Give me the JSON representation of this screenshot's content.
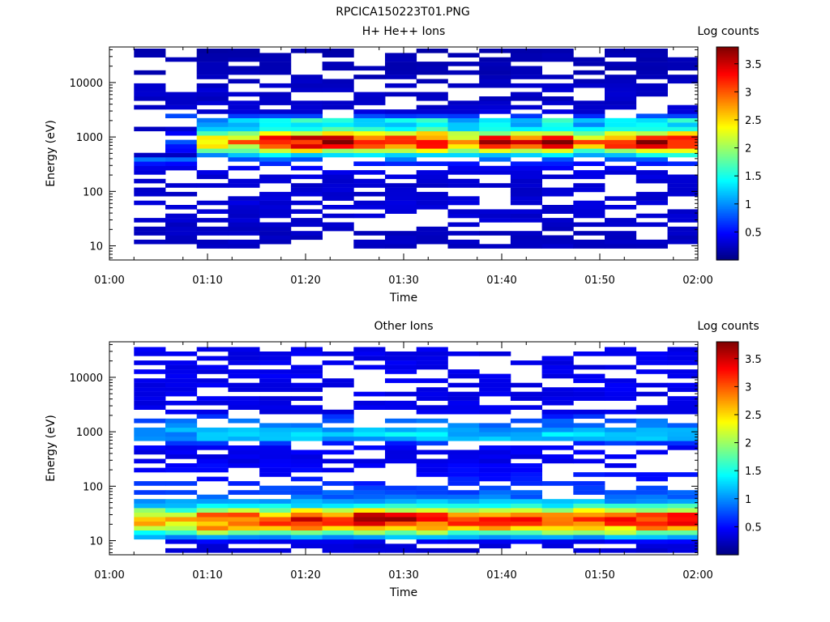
{
  "figure_title": "RPCICA150223T01.PNG",
  "colorscale": [
    "#00007f",
    "#0000ff",
    "#0080ff",
    "#00ffff",
    "#80ff80",
    "#ffff00",
    "#ff8000",
    "#ff0000",
    "#7f0000"
  ],
  "chart_data": [
    {
      "type": "heatmap",
      "title": "H+ He++ Ions",
      "xlabel": "Time",
      "ylabel": "Energy (eV)",
      "colorbar_title": "Log counts",
      "y_scale": "log",
      "ylim": [
        5.5,
        45000
      ],
      "zlim": [
        0,
        3.8
      ],
      "x_ticks": [
        "01:00",
        "01:10",
        "01:20",
        "01:30",
        "01:40",
        "01:50",
        "02:00"
      ],
      "y_ticks": [
        "10",
        "100",
        "1000",
        "10000"
      ],
      "colorbar_ticks": [
        "0.5",
        "1",
        "1.5",
        "2",
        "2.5",
        "3",
        "3.5"
      ],
      "x_range_minutes": [
        0,
        60
      ],
      "time_bins_minutes": [
        2.5,
        5.7,
        8.9,
        12.1,
        15.3,
        18.5,
        21.7,
        24.9,
        28.1,
        31.3,
        34.5,
        37.7,
        40.9,
        44.1,
        47.3,
        50.5,
        53.7,
        56.9,
        60.0
      ],
      "profile_energy": [
        20,
        30,
        45,
        60,
        80,
        100,
        150,
        200,
        300,
        400,
        500,
        600,
        700,
        800,
        900,
        1100,
        1300,
        1600,
        2000,
        2500,
        3000,
        4000,
        5000,
        7000,
        10000,
        15000,
        20000,
        30000,
        40000
      ],
      "profile_log_counts": [
        0.25,
        0.3,
        0.3,
        0.35,
        0.3,
        0.3,
        0.3,
        0.35,
        0.45,
        0.9,
        1.6,
        2.5,
        3.2,
        3.5,
        3.3,
        2.6,
        1.7,
        1.3,
        1.5,
        0.6,
        0.3,
        0.3,
        0.25,
        0.3,
        0.25,
        0.2,
        0.2,
        0.2,
        0.15
      ],
      "peak_log_counts_by_time_bin": [
        0.6,
        0.7,
        2.6,
        2.8,
        3.4,
        3.6,
        3.7,
        3.2,
        3.6,
        3.5,
        2.9,
        3.4,
        3.1,
        3.5,
        2.8,
        3.5,
        3.6,
        3.5
      ]
    },
    {
      "type": "heatmap",
      "title": "Other Ions",
      "xlabel": "Time",
      "ylabel": "Energy (eV)",
      "colorbar_title": "Log counts",
      "y_scale": "log",
      "ylim": [
        5.5,
        45000
      ],
      "zlim": [
        0,
        3.8
      ],
      "x_ticks": [
        "01:00",
        "01:10",
        "01:20",
        "01:30",
        "01:40",
        "01:50",
        "02:00"
      ],
      "y_ticks": [
        "10",
        "100",
        "1000",
        "10000"
      ],
      "colorbar_ticks": [
        "0.5",
        "1",
        "1.5",
        "2",
        "2.5",
        "3",
        "3.5"
      ],
      "x_range_minutes": [
        0,
        60
      ],
      "time_bins_minutes": [
        2.5,
        5.7,
        8.9,
        12.1,
        15.3,
        18.5,
        21.7,
        24.9,
        28.1,
        31.3,
        34.5,
        37.7,
        40.9,
        44.1,
        47.3,
        50.5,
        53.7,
        56.9,
        60.0
      ],
      "profile_energy": [
        6,
        8,
        10,
        12,
        15,
        18,
        22,
        27,
        33,
        40,
        50,
        60,
        75,
        90,
        110,
        140,
        170,
        200,
        250,
        300,
        400,
        500,
        650,
        800,
        1000,
        1300,
        1700,
        2200
      ],
      "profile_log_counts": [
        0.3,
        0.35,
        0.45,
        1.2,
        2.2,
        2.8,
        3.1,
        3.3,
        2.6,
        1.7,
        1.2,
        0.9,
        0.8,
        0.75,
        0.65,
        0.55,
        0.5,
        0.45,
        0.45,
        0.4,
        0.4,
        0.45,
        0.7,
        1.3,
        1.2,
        0.9,
        0.8,
        0.4
      ],
      "peak_log_counts_by_time_bin": [
        2.9,
        2.8,
        3.4,
        3.2,
        3.3,
        3.4,
        3.5,
        3.7,
        3.6,
        3.5,
        3.4,
        3.4,
        3.5,
        3.5,
        3.6,
        3.5,
        3.5,
        3.5
      ]
    }
  ]
}
